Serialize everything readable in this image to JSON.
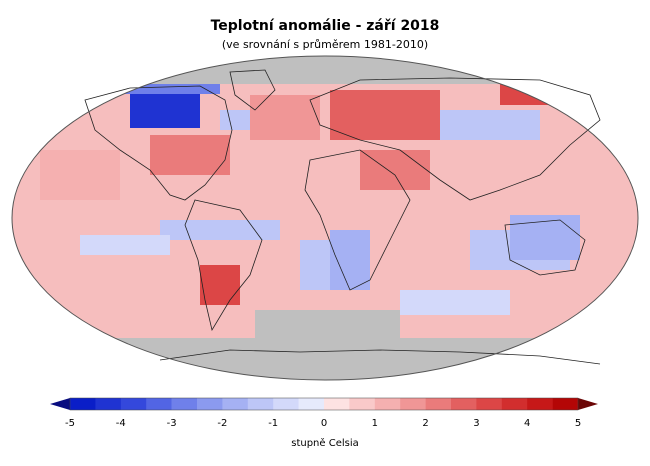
{
  "title": "Teplotní anomálie - září 2018",
  "subtitle": "(ve srovnání s průměrem 1981-2010)",
  "legend": {
    "ticks": [
      "-5",
      "-4",
      "-3",
      "-2",
      "-1",
      "0",
      "1",
      "2",
      "3",
      "4",
      "5"
    ],
    "unit": "stupně Celsia",
    "min": -5,
    "max": 5,
    "no_data_color": "#bfbfbf",
    "colors_negative": [
      "#0a1ec8",
      "#1f33d2",
      "#3448dc",
      "#5265e4",
      "#6f80ea",
      "#8b9aef",
      "#a5b1f3",
      "#bdc6f7",
      "#d3d9fa",
      "#e6eafc"
    ],
    "colors_positive": [
      "#fde2e2",
      "#f9c9c9",
      "#f5b0b0",
      "#f09696",
      "#ea7b7b",
      "#e36060",
      "#dc4646",
      "#d22e2e",
      "#c61818",
      "#b40606"
    ]
  }
}
